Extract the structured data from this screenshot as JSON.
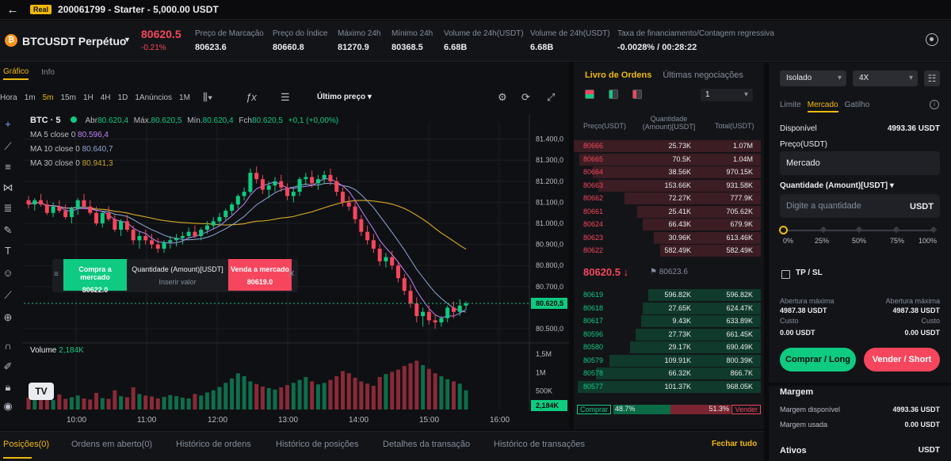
{
  "topbar": {
    "badge": "Real",
    "account": "200061799 - Starter - 5,000.00 USDT"
  },
  "ticker": {
    "symbol": "BTCUSDT Perpétuo",
    "coin_letter": "₿",
    "last_price": "80620.5",
    "change": "-0.21%",
    "stats": [
      {
        "label": "Preço de Marcação",
        "value": "80623.6"
      },
      {
        "label": "Preço do Índice",
        "value": "80660.8"
      },
      {
        "label": "Máximo 24h",
        "value": "81270.9"
      },
      {
        "label": "Mínimo 24h",
        "value": "80368.5"
      },
      {
        "label": "Volume de 24h(USDT)",
        "value": "6.68B"
      },
      {
        "label": "Volume de 24h(USDT)",
        "value": "6.68B"
      },
      {
        "label": "Taxa de financiamento/Contagem regressiva",
        "value": "-0.0028% / 00:28:22"
      }
    ]
  },
  "chart_panel": {
    "tabs": [
      "Gráfico",
      "Info"
    ],
    "timeframes": [
      "Hora",
      "1m",
      "5m",
      "15m",
      "1H",
      "4H",
      "1D",
      "1Anúncios",
      "1M"
    ],
    "active_timeframe": "5m",
    "price_type": "Último preço",
    "legend": {
      "symbol": "BTC · 5",
      "abr_label": "Abr",
      "abr": "80.620,4",
      "max_label": "Máx.",
      "max": "80.620,5",
      "min_label": "Mín.",
      "min": "80.620,4",
      "fch_label": "Fch",
      "fch": "80.620,5",
      "chg": "+0,1 (+0,00%)",
      "ma5_label": "MA 5 close 0",
      "ma5": "80.596,4",
      "ma10_label": "MA 10 close 0",
      "ma10": "80.640,7",
      "ma30_label": "MA 30 close 0",
      "ma30": "80.941,3"
    },
    "quick_order": {
      "buy_label": "Compra a mercado",
      "buy_price": "80622.0",
      "qty_label": "Quantidade (Amount)[USDT]",
      "qty_placeholder": "Inserir valor",
      "sell_label": "Venda a mercado",
      "sell_price": "80619.0"
    },
    "volume_label": "Volume",
    "volume_value": "2,184K",
    "logo": "TV"
  },
  "chart_data": {
    "type": "candlestick",
    "price_axis_ticks": [
      "81.400,0",
      "81.300,0",
      "81.200,0",
      "81.100,0",
      "81.000,0",
      "80.900,0",
      "80.800,0",
      "80.700,0",
      "80.500,0"
    ],
    "price_axis_values": [
      81400,
      81300,
      81200,
      81100,
      81000,
      80900,
      80800,
      80700,
      80500
    ],
    "ylim": [
      80470,
      81440
    ],
    "current_price_label": "80.620,5",
    "current_price": 80620.5,
    "volume_axis_ticks": [
      "1,5M",
      "1M",
      "500K"
    ],
    "volume_axis_values": [
      1500,
      1000,
      500
    ],
    "volume_ylim": [
      0,
      1650
    ],
    "current_volume_label": "2,184K",
    "time_ticks": [
      "10:00",
      "11:00",
      "12:00",
      "13:00",
      "14:00",
      "15:00",
      "16:00"
    ],
    "candles": [
      [
        81110,
        81130,
        81070,
        81090
      ],
      [
        81090,
        81120,
        81060,
        81110
      ],
      [
        81110,
        81140,
        81080,
        81090
      ],
      [
        81090,
        81110,
        81040,
        81050
      ],
      [
        81050,
        81100,
        81030,
        81080
      ],
      [
        81080,
        81110,
        81050,
        81060
      ],
      [
        81060,
        81090,
        81020,
        81030
      ],
      [
        81030,
        81080,
        81000,
        81070
      ],
      [
        81070,
        81120,
        81040,
        81110
      ],
      [
        81110,
        81140,
        81070,
        81080
      ],
      [
        81080,
        81110,
        81040,
        81050
      ],
      [
        81050,
        81080,
        80990,
        81000
      ],
      [
        81000,
        81060,
        80980,
        81050
      ],
      [
        81050,
        81080,
        81010,
        81020
      ],
      [
        81020,
        81040,
        80960,
        80970
      ],
      [
        80970,
        81020,
        80940,
        81010
      ],
      [
        81010,
        81040,
        80960,
        80970
      ],
      [
        80970,
        80990,
        80900,
        80920
      ],
      [
        80920,
        80960,
        80880,
        80940
      ],
      [
        80940,
        80970,
        80900,
        80920
      ],
      [
        80920,
        80950,
        80880,
        80900
      ],
      [
        80900,
        80930,
        80860,
        80880
      ],
      [
        80880,
        80920,
        80860,
        80910
      ],
      [
        80910,
        80940,
        80880,
        80920
      ],
      [
        80920,
        80950,
        80890,
        80930
      ],
      [
        80930,
        80960,
        80900,
        80940
      ],
      [
        80940,
        80980,
        80920,
        80960
      ],
      [
        80960,
        80990,
        80930,
        80940
      ],
      [
        80940,
        80980,
        80920,
        80970
      ],
      [
        80970,
        81010,
        80950,
        80990
      ],
      [
        80990,
        81030,
        80970,
        81010
      ],
      [
        81010,
        81050,
        80990,
        81030
      ],
      [
        81030,
        81070,
        81010,
        81060
      ],
      [
        81060,
        81100,
        81040,
        81090
      ],
      [
        81090,
        81140,
        81070,
        81130
      ],
      [
        81130,
        81170,
        81110,
        81150
      ],
      [
        81150,
        81260,
        81140,
        81240
      ],
      [
        81240,
        81270,
        81190,
        81210
      ],
      [
        81210,
        81230,
        81140,
        81160
      ],
      [
        81160,
        81200,
        81120,
        81180
      ],
      [
        81180,
        81220,
        81150,
        81200
      ],
      [
        81200,
        81230,
        81150,
        81170
      ],
      [
        81170,
        81190,
        81110,
        81130
      ],
      [
        81130,
        81170,
        81100,
        81150
      ],
      [
        81150,
        81220,
        81130,
        81210
      ],
      [
        81210,
        81240,
        81180,
        81220
      ],
      [
        81220,
        81250,
        81170,
        81190
      ],
      [
        81190,
        81230,
        81160,
        81210
      ],
      [
        81210,
        81250,
        81190,
        81230
      ],
      [
        81230,
        81260,
        81180,
        81200
      ],
      [
        81200,
        81220,
        81130,
        81150
      ],
      [
        81150,
        81170,
        81080,
        81100
      ],
      [
        81100,
        81130,
        81060,
        81080
      ],
      [
        81080,
        81110,
        81000,
        81020
      ],
      [
        81020,
        81040,
        80940,
        80960
      ],
      [
        80960,
        80990,
        80900,
        80920
      ],
      [
        80920,
        80950,
        80860,
        80880
      ],
      [
        80880,
        80900,
        80800,
        80820
      ],
      [
        80820,
        80860,
        80790,
        80840
      ],
      [
        80840,
        80870,
        80780,
        80800
      ],
      [
        80800,
        80820,
        80720,
        80740
      ],
      [
        80740,
        80760,
        80660,
        80680
      ],
      [
        80680,
        80710,
        80600,
        80620
      ],
      [
        80620,
        80650,
        80530,
        80560
      ],
      [
        80560,
        80600,
        80510,
        80580
      ],
      [
        80580,
        80610,
        80520,
        80540
      ],
      [
        80540,
        80570,
        80500,
        80530
      ],
      [
        80530,
        80560,
        80510,
        80550
      ],
      [
        80550,
        80610,
        80530,
        80600
      ],
      [
        80600,
        80630,
        80550,
        80580
      ],
      [
        80580,
        80640,
        80560,
        80610
      ],
      [
        80610,
        80630,
        80590,
        80620
      ]
    ],
    "ma": [
      {
        "name": "MA 5",
        "color": "#c084fc"
      },
      {
        "name": "MA 10",
        "color": "#8fa8d8"
      },
      {
        "name": "MA 30",
        "color": "#c9a227"
      }
    ],
    "volumes": [
      320,
      280,
      350,
      300,
      260,
      410,
      290,
      330,
      380,
      300,
      270,
      450,
      310,
      290,
      520,
      360,
      330,
      600,
      420,
      380,
      350,
      300,
      340,
      390,
      360,
      320,
      300,
      420,
      380,
      460,
      520,
      610,
      720,
      840,
      980,
      900,
      760,
      690,
      620,
      580,
      540,
      600,
      660,
      720,
      800,
      880,
      760,
      680,
      720,
      800,
      900,
      1040,
      980,
      860,
      760,
      700,
      640,
      880,
      960,
      1020,
      1080,
      1180,
      1250,
      1320,
      1200,
      1100,
      980,
      900,
      820,
      760,
      700,
      520
    ],
    "grid": true
  },
  "order_book": {
    "tabs": [
      "Livro de Ordens",
      "Últimas negociações"
    ],
    "step": "1",
    "headers": {
      "price": "Preço(USDT)",
      "qty": "Quantidade (Amount)[USDT]",
      "total": "Total(USDT)"
    },
    "asks": [
      {
        "price": "80666",
        "qty": "25.73K",
        "total": "1.07M",
        "depth": 1.0
      },
      {
        "price": "80665",
        "qty": "70.5K",
        "total": "1.04M",
        "depth": 0.97
      },
      {
        "price": "80664",
        "qty": "38.56K",
        "total": "970.15K",
        "depth": 0.9
      },
      {
        "price": "80663",
        "qty": "153.66K",
        "total": "931.58K",
        "depth": 0.87
      },
      {
        "price": "80662",
        "qty": "72.27K",
        "total": "777.9K",
        "depth": 0.73
      },
      {
        "price": "80661",
        "qty": "25.41K",
        "total": "705.62K",
        "depth": 0.66
      },
      {
        "price": "80624",
        "qty": "66.43K",
        "total": "679.9K",
        "depth": 0.63
      },
      {
        "price": "80623",
        "qty": "30.96K",
        "total": "613.46K",
        "depth": 0.57
      },
      {
        "price": "80622",
        "qty": "582.49K",
        "total": "582.49K",
        "depth": 0.54
      }
    ],
    "mid_price": "80620.5",
    "mid_arrow": "↓",
    "mark_price": "80623.6",
    "bids": [
      {
        "price": "80619",
        "qty": "596.82K",
        "total": "596.82K",
        "depth": 0.6
      },
      {
        "price": "80618",
        "qty": "27.65K",
        "total": "624.47K",
        "depth": 0.63
      },
      {
        "price": "80617",
        "qty": "9.43K",
        "total": "633.89K",
        "depth": 0.64
      },
      {
        "price": "80596",
        "qty": "27.73K",
        "total": "661.45K",
        "depth": 0.67
      },
      {
        "price": "80580",
        "qty": "29.17K",
        "total": "690.49K",
        "depth": 0.7
      },
      {
        "price": "80579",
        "qty": "109.91K",
        "total": "800.39K",
        "depth": 0.81
      },
      {
        "price": "80578",
        "qty": "66.32K",
        "total": "866.7K",
        "depth": 0.88
      },
      {
        "price": "80577",
        "qty": "101.37K",
        "total": "968.05K",
        "depth": 0.98
      }
    ],
    "buy_label": "Comprar",
    "buy_pct": "48.7%",
    "buy_ratio": 0.487,
    "sell_pct": "51.3%",
    "sell_label": "Vender"
  },
  "order_form": {
    "margin_mode": "Isolado",
    "leverage": "4X",
    "types": [
      "Limite",
      "Mercado",
      "Gatilho"
    ],
    "active_type": "Mercado",
    "available_label": "Disponível",
    "available": "4993.36 USDT",
    "price_label": "Preço(USDT)",
    "price_value": "Mercado",
    "qty_label": "Quantidade (Amount)[USDT]",
    "qty_placeholder": "Digite a quantidade",
    "qty_unit": "USDT",
    "slider_ticks": [
      "0%",
      "25%",
      "50%",
      "75%",
      "100%"
    ],
    "slider_value": 0,
    "tpsl_label": "TP / SL",
    "max_open_label": "Abertura máxima",
    "max_open_long": "4987.38 USDT",
    "max_open_short": "4987.38 USDT",
    "cost_label": "Custo",
    "cost_long": "0.00 USDT",
    "cost_short": "0.00 USDT",
    "long_button": "Comprar / Long",
    "short_button": "Vender / Short",
    "margin_title": "Margem",
    "margin_available_label": "Margem disponível",
    "margin_available": "4993.36 USDT",
    "margin_used_label": "Margem usada",
    "margin_used": "0.00 USDT",
    "assets_label": "Ativos",
    "assets_unit": "USDT"
  },
  "bottom_tabs": {
    "items": [
      "Posições(0)",
      "Ordens em aberto(0)",
      "Histórico de ordens",
      "Histórico de posições",
      "Detalhes da transação",
      "Histórico de transações"
    ],
    "close_all": "Fechar tudo"
  },
  "colors": {
    "up": "#0ecb81",
    "down": "#f6465d",
    "accent": "#f0b90b",
    "bg": "#0b0b0e"
  }
}
